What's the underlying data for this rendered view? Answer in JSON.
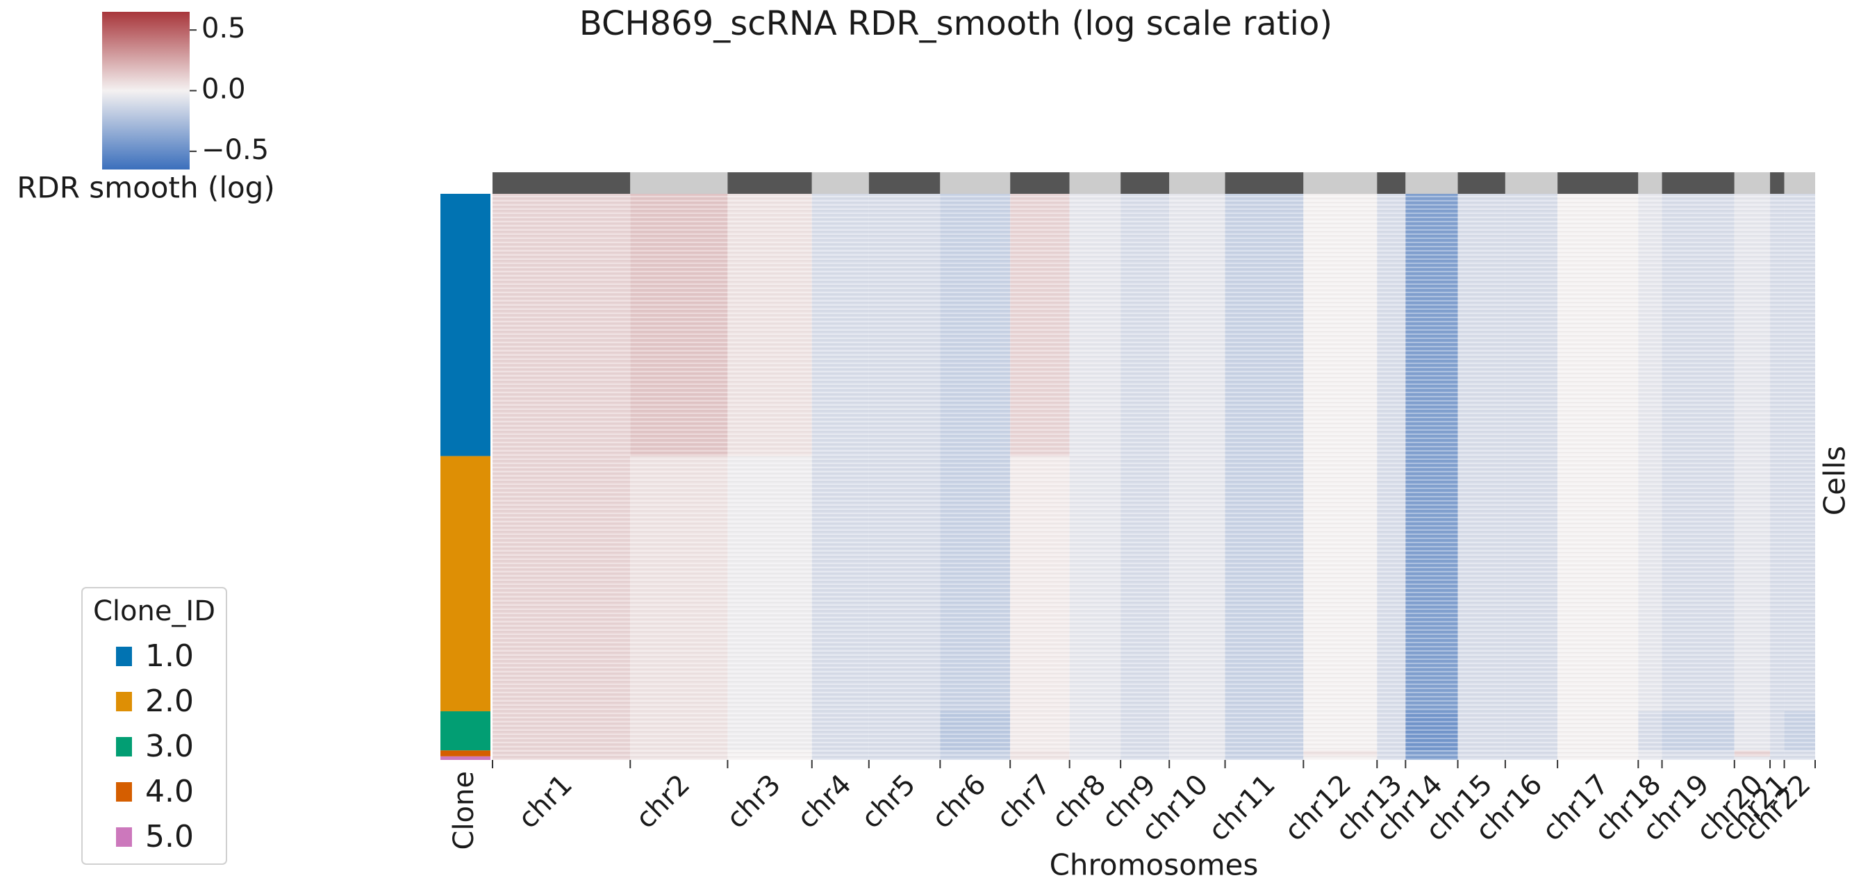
{
  "chart_data": {
    "type": "heatmap",
    "title": "BCH869_scRNA RDR_smooth (log scale ratio)",
    "xlabel": "Chromosomes",
    "ylabel": "Cells",
    "row_label": "Clone",
    "categories": [
      "chr1",
      "chr2",
      "chr3",
      "chr4",
      "chr5",
      "chr6",
      "chr7",
      "chr8",
      "chr9",
      "chr10",
      "chr11",
      "chr12",
      "chr13",
      "chr14",
      "chr15",
      "chr16",
      "chr17",
      "chr18",
      "chr19",
      "chr20",
      "chr21",
      "chr22"
    ],
    "bins": [
      0,
      116,
      198,
      269,
      317,
      377,
      436,
      486,
      529,
      570,
      617,
      683,
      745,
      769,
      813,
      853,
      897,
      965,
      985,
      1046,
      1076,
      1088,
      1114
    ],
    "xlim": [
      0,
      1114
    ],
    "chrom_bar_colors": [
      "#555555",
      "#cccccc"
    ],
    "clone_edges": [
      0,
      221,
      436,
      469,
      474,
      477
    ],
    "ylim": [
      0,
      477
    ],
    "legend_title": "Clone_ID",
    "series": [
      {
        "name": "1.0",
        "color": "#0173b2",
        "values": [
          0.1,
          0.15,
          0.05,
          -0.1,
          -0.1,
          -0.15,
          0.1,
          -0.05,
          -0.1,
          -0.05,
          -0.15,
          0.0,
          -0.1,
          -0.4,
          -0.1,
          -0.1,
          0.0,
          -0.05,
          -0.1,
          -0.05,
          -0.1,
          -0.1
        ]
      },
      {
        "name": "2.0",
        "color": "#de8f05",
        "values": [
          0.1,
          0.05,
          -0.02,
          -0.1,
          -0.1,
          -0.15,
          0.02,
          -0.05,
          -0.1,
          -0.05,
          -0.15,
          0.0,
          -0.1,
          -0.4,
          -0.1,
          -0.1,
          0.0,
          -0.05,
          -0.1,
          -0.05,
          -0.1,
          -0.1
        ]
      },
      {
        "name": "3.0",
        "color": "#029e73",
        "values": [
          0.1,
          0.05,
          -0.02,
          -0.1,
          -0.1,
          -0.2,
          0.02,
          -0.05,
          -0.1,
          -0.05,
          -0.15,
          0.0,
          -0.1,
          -0.45,
          -0.1,
          -0.1,
          0.0,
          -0.1,
          -0.15,
          -0.05,
          -0.1,
          -0.15
        ]
      },
      {
        "name": "4.0",
        "color": "#d55e00",
        "values": [
          0.1,
          0.05,
          0.0,
          -0.1,
          -0.1,
          -0.15,
          0.05,
          -0.05,
          -0.1,
          -0.05,
          -0.15,
          0.05,
          -0.1,
          -0.4,
          -0.1,
          -0.1,
          0.0,
          -0.05,
          -0.1,
          0.1,
          -0.1,
          -0.1
        ]
      },
      {
        "name": "5.0",
        "color": "#cc78bc",
        "values": [
          0.1,
          0.05,
          0.0,
          -0.1,
          -0.1,
          -0.15,
          0.05,
          -0.05,
          -0.1,
          -0.05,
          -0.15,
          0.0,
          -0.1,
          -0.4,
          -0.1,
          -0.1,
          0.0,
          -0.05,
          -0.1,
          -0.05,
          -0.1,
          -0.1
        ]
      }
    ],
    "colorbar": {
      "label": "RDR smooth (log)",
      "clim": [
        -0.65,
        0.65
      ],
      "colormap": [
        "#3b6fbc",
        "#f4f1f1",
        "#a8363b"
      ],
      "ticks": [
        0.5,
        {
          "value": 0,
          "label": "0.0"
        },
        {
          "value": -0.5,
          "label": "−0.5"
        }
      ]
    }
  }
}
